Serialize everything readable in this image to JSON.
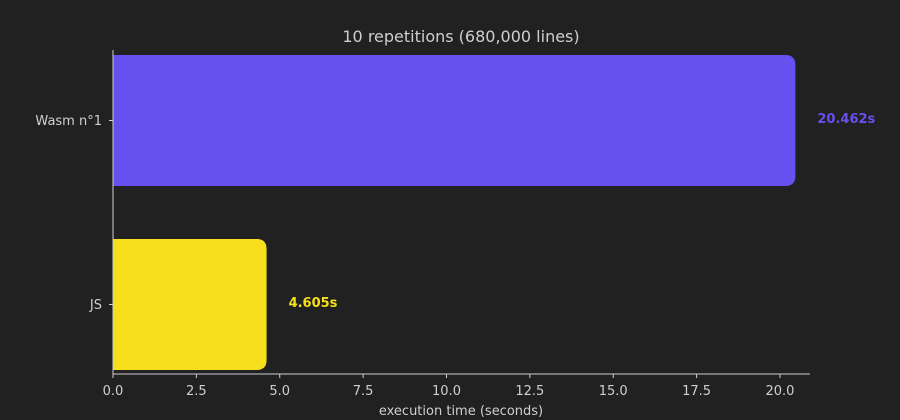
{
  "chart_data": {
    "type": "bar",
    "orientation": "horizontal",
    "title": "10 repetitions (680,000 lines)",
    "xlabel": "execution time (seconds)",
    "ylabel": "",
    "xlim": [
      0,
      20.9
    ],
    "x_ticks": [
      "0.0",
      "2.5",
      "5.0",
      "7.5",
      "10.0",
      "12.5",
      "15.0",
      "17.5",
      "20.0"
    ],
    "categories": [
      "Wasm n°1",
      "JS"
    ],
    "values": [
      20.462,
      4.605
    ],
    "value_labels": [
      "20.462s",
      "4.605s"
    ],
    "colors": [
      "#6650f0",
      "#f7df1e"
    ],
    "grid": false,
    "legend": "none"
  }
}
